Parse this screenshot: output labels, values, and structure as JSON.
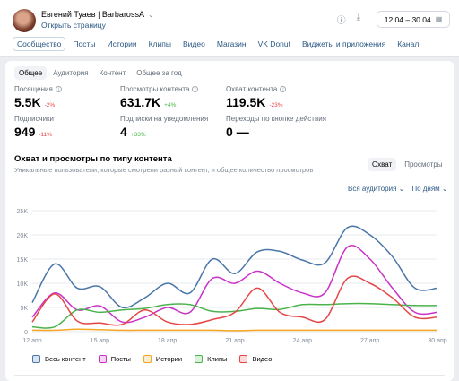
{
  "header": {
    "title": "Евгений Туаев | BarbarossA",
    "open_page": "Открыть страницу",
    "date_range": "12.04 – 30.04"
  },
  "nav": {
    "tabs": [
      "Сообщество",
      "Посты",
      "Истории",
      "Клипы",
      "Видео",
      "Магазин",
      "VK Donut",
      "Виджеты и приложения",
      "Канал"
    ],
    "active": 0
  },
  "subtabs": {
    "items": [
      "Общее",
      "Аудитория",
      "Контент",
      "Общее за год"
    ],
    "active": 0
  },
  "metrics": [
    {
      "label": "Посещения",
      "value": "5.5K",
      "change": "-2%",
      "trend": "neg",
      "info": true
    },
    {
      "label": "Просмотры контента",
      "value": "631.7K",
      "change": "+4%",
      "trend": "pos",
      "info": true
    },
    {
      "label": "Охват контента",
      "value": "119.5K",
      "change": "-23%",
      "trend": "neg",
      "info": true
    },
    {
      "label": "Подписчики",
      "value": "949",
      "change": "-11%",
      "trend": "neg",
      "info": false
    },
    {
      "label": "Подписки на уведомления",
      "value": "4",
      "change": "+33%",
      "trend": "pos",
      "info": false
    },
    {
      "label": "Переходы по кнопке действия",
      "value": "0",
      "change": "—",
      "trend": "none",
      "info": false
    }
  ],
  "section": {
    "title": "Охват и просмотры по типу контента",
    "subtitle": "Уникальные пользователи, которые смотрели разный контент, и общее количество просмотров",
    "toggle": [
      "Охват",
      "Просмотры"
    ],
    "toggle_active": 0,
    "filter_audience": "Вся аудитория ⌄",
    "filter_period": "По дням ⌄"
  },
  "colors": {
    "accent": "#2a5885",
    "negative": "#e64646",
    "positive": "#4bb34b"
  },
  "chart_data": {
    "type": "line",
    "x": [
      "12 апр",
      "13 апр",
      "14 апр",
      "15 апр",
      "16 апр",
      "17 апр",
      "18 апр",
      "19 апр",
      "20 апр",
      "21 апр",
      "22 апр",
      "23 апр",
      "24 апр",
      "25 апр",
      "26 апр",
      "27 апр",
      "28 апр",
      "29 апр",
      "30 апр"
    ],
    "x_tick_labels": [
      "12 апр",
      "15 апр",
      "18 апр",
      "21 апр",
      "24 апр",
      "27 апр",
      "30 апр"
    ],
    "x_tick_indices": [
      0,
      3,
      6,
      9,
      12,
      15,
      18
    ],
    "y_tick_labels": [
      "0",
      "5K",
      "10K",
      "15K",
      "20K",
      "25K"
    ],
    "ylim": [
      0,
      25000
    ],
    "grid": true,
    "legend": "bottom",
    "series": [
      {
        "name": "Весь контент",
        "color": "#4a76a8",
        "values": [
          6000,
          14000,
          9000,
          9300,
          5000,
          7000,
          10000,
          8000,
          15000,
          12000,
          16500,
          16600,
          14800,
          14200,
          21500,
          20000,
          15500,
          9000,
          9000
        ]
      },
      {
        "name": "Посты",
        "color": "#c832c8",
        "values": [
          3000,
          8000,
          4500,
          5300,
          2000,
          3000,
          5000,
          4000,
          11000,
          10000,
          12500,
          10000,
          8000,
          8000,
          17500,
          15000,
          9000,
          4000,
          4000
        ]
      },
      {
        "name": "Истории",
        "color": "#f5a623",
        "values": [
          300,
          300,
          500,
          400,
          300,
          300,
          300,
          300,
          300,
          200,
          300,
          300,
          300,
          300,
          300,
          300,
          300,
          300,
          300
        ]
      },
      {
        "name": "Клипы",
        "color": "#4bb34b",
        "values": [
          1000,
          1000,
          4500,
          4000,
          4500,
          4800,
          5600,
          5600,
          4200,
          4200,
          4800,
          4600,
          5600,
          5600,
          5800,
          5800,
          5600,
          5400,
          5400
        ]
      },
      {
        "name": "Видео",
        "color": "#e64646",
        "values": [
          2000,
          7800,
          2200,
          1800,
          1500,
          4500,
          2000,
          1500,
          2500,
          4000,
          9000,
          4000,
          3000,
          2500,
          11000,
          10000,
          7000,
          3000,
          3000
        ]
      }
    ]
  }
}
